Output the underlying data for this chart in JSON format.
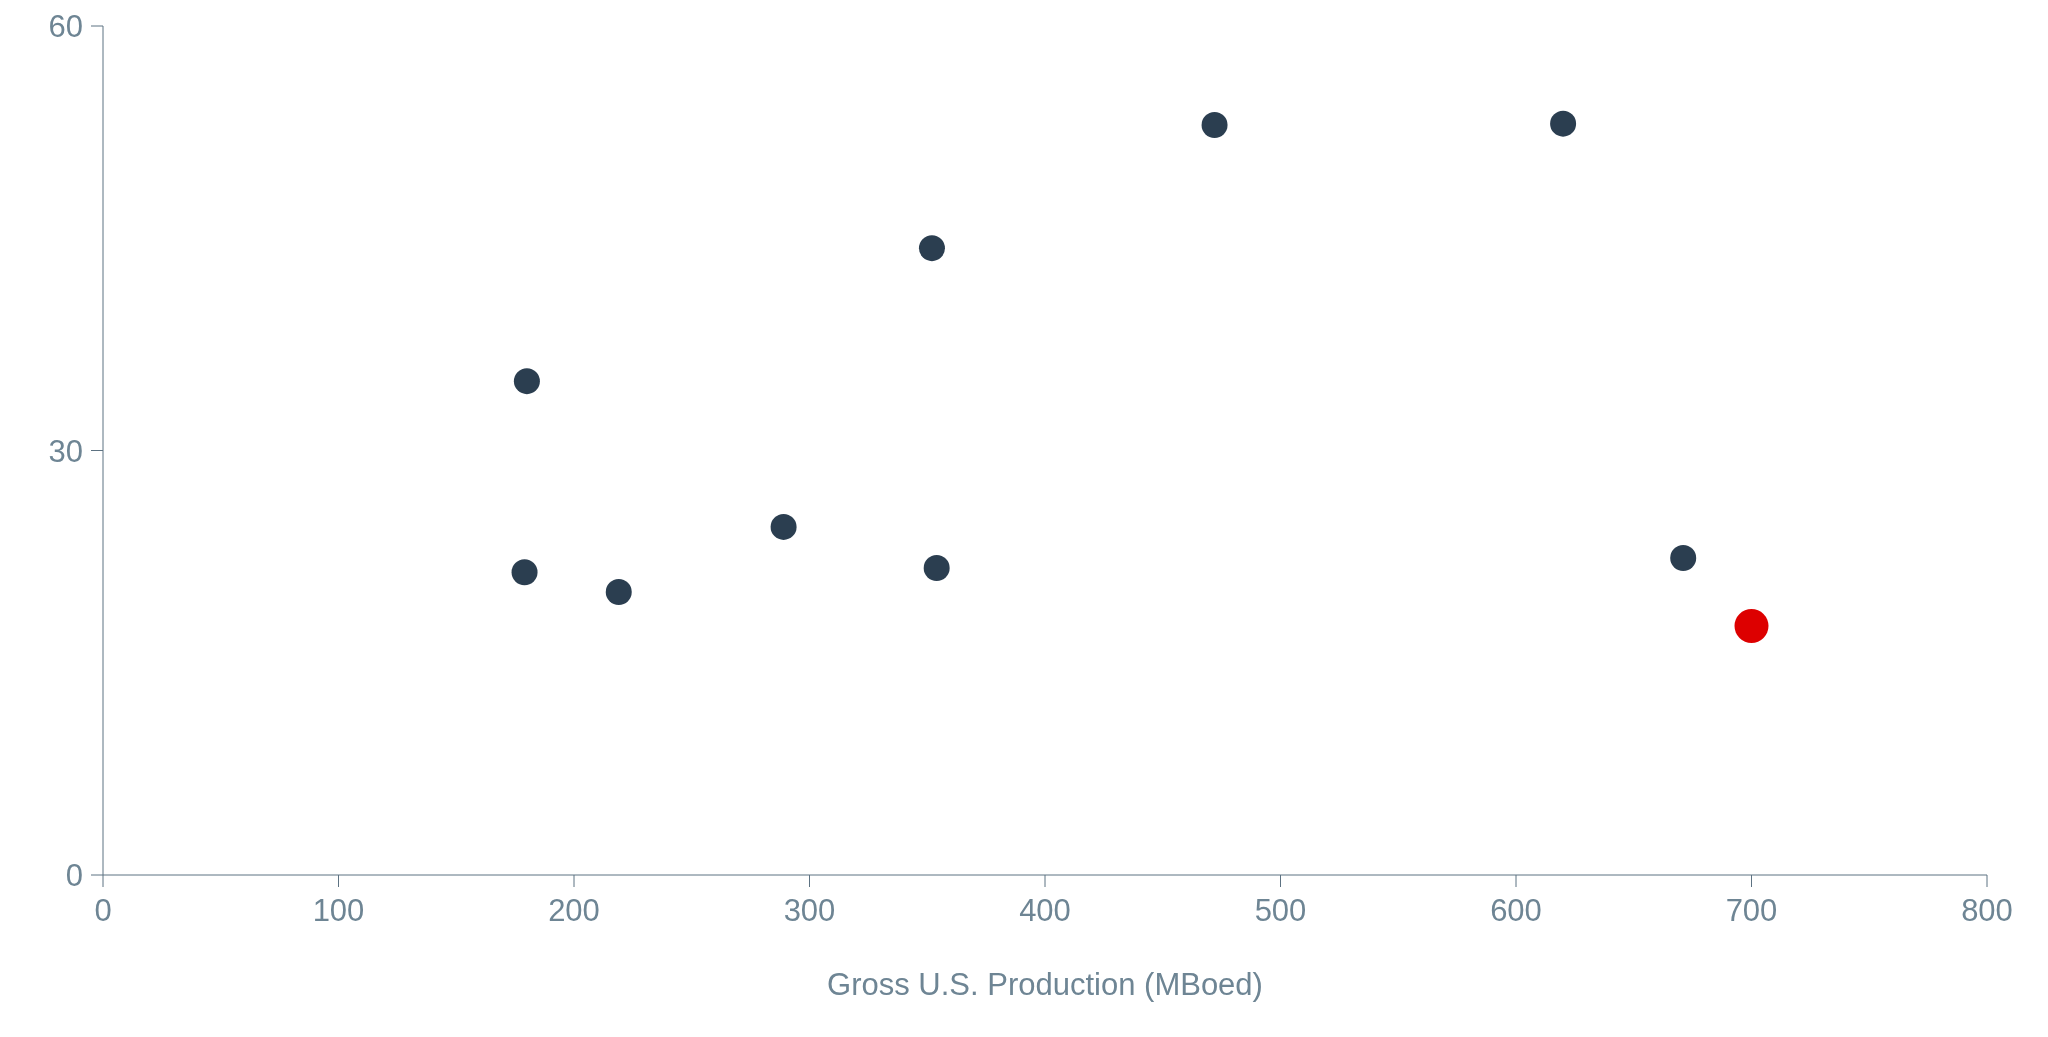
{
  "chart_data": {
    "type": "scatter",
    "xlabel": "Gross U.S. Production (MBoed)",
    "xlim": [
      0,
      800
    ],
    "xticks": [
      0,
      100,
      200,
      300,
      400,
      500,
      600,
      700,
      800
    ],
    "ylim": [
      0,
      60
    ],
    "yticks": [
      0,
      30,
      60
    ],
    "grid": false,
    "marker": "circle",
    "series": [
      {
        "color": "#2b3e50",
        "x": [
          180,
          179,
          219,
          289,
          352,
          354,
          472,
          620,
          671
        ],
        "values": [
          34.9,
          21.4,
          20.0,
          24.6,
          44.3,
          21.7,
          53.0,
          53.1,
          22.4
        ]
      },
      {
        "color": "#dd0000",
        "x": [
          700
        ],
        "values": [
          17.6
        ]
      }
    ]
  }
}
